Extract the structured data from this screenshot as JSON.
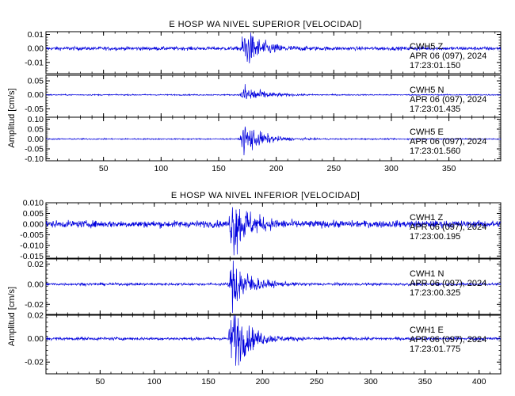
{
  "colors": {
    "trace": "#0000dd",
    "axis": "#000000",
    "background": "#ffffff"
  },
  "chart_data": [
    {
      "type": "line",
      "title": "E HOSP WA NIVEL SUPERIOR [VELOCIDAD]",
      "ylabel": "Amplitud [cm/s]",
      "xlim": [
        0,
        395
      ],
      "xticks": [
        50,
        100,
        150,
        200,
        250,
        300,
        350
      ],
      "event_onset_x": 168,
      "panels": [
        {
          "channel": "CWH5   Z",
          "date": "APR 06 (097), 2024",
          "time": "17:23:01.150",
          "ylim": [
            -0.018,
            0.012
          ],
          "yticks": [
            0.01,
            0.0,
            -0.01
          ],
          "yticklabels": [
            "0.01",
            "0.00",
            "-0.01"
          ],
          "noise_amplitude": 0.0012,
          "peak_amplitude": 0.013
        },
        {
          "channel": "CWH5   N",
          "date": "APR 06 (097), 2024",
          "time": "17:23:01.435",
          "ylim": [
            -0.08,
            0.07
          ],
          "yticks": [
            0.05,
            0.0,
            -0.05
          ],
          "yticklabels": [
            "0.05",
            "0.00",
            "-0.05"
          ],
          "noise_amplitude": 0.002,
          "peak_amplitude": 0.035
        },
        {
          "channel": "CWH5   E",
          "date": "APR 06 (097), 2024",
          "time": "17:23:01.560",
          "ylim": [
            -0.11,
            0.11
          ],
          "yticks": [
            0.1,
            0.05,
            0.0,
            -0.05,
            -0.1
          ],
          "yticklabels": [
            "0.10",
            "0.05",
            "0.00",
            "-0.05",
            "-0.10"
          ],
          "noise_amplitude": 0.003,
          "peak_amplitude": 0.08
        }
      ]
    },
    {
      "type": "line",
      "title": "E HOSP WA NIVEL INFERIOR [VELOCIDAD]",
      "ylabel": "Amplitud [cm/s]",
      "xlim": [
        0,
        420
      ],
      "xticks": [
        50,
        100,
        150,
        200,
        250,
        300,
        350,
        400
      ],
      "event_onset_x": 168,
      "panels": [
        {
          "channel": "CWH1   Z",
          "date": "APR 06 (097), 2024",
          "time": "17:23:00.195",
          "ylim": [
            -0.016,
            0.01
          ],
          "yticks": [
            0.01,
            0.005,
            0.0,
            -0.005,
            -0.01,
            -0.015
          ],
          "yticklabels": [
            "0.010",
            "0.005",
            "0.000",
            "-0.005",
            "-0.010",
            "-0.015"
          ],
          "noise_amplitude": 0.0015,
          "peak_amplitude": 0.013
        },
        {
          "channel": "CWH1   N",
          "date": "APR 06 (097), 2024",
          "time": "17:23:00.325",
          "ylim": [
            -0.03,
            0.025
          ],
          "yticks": [
            0.02,
            0.0,
            -0.02
          ],
          "yticklabels": [
            "0.02",
            "0.00",
            "-0.02"
          ],
          "noise_amplitude": 0.0012,
          "peak_amplitude": 0.026
        },
        {
          "channel": "CWH1   E",
          "date": "APR 06 (097), 2024",
          "time": "17:23:01.775",
          "ylim": [
            -0.03,
            0.02
          ],
          "yticks": [
            0.02,
            0.0,
            -0.02
          ],
          "yticklabels": [
            "0.02",
            "0.00",
            "-0.02"
          ],
          "noise_amplitude": 0.0012,
          "peak_amplitude": 0.027
        }
      ]
    }
  ]
}
